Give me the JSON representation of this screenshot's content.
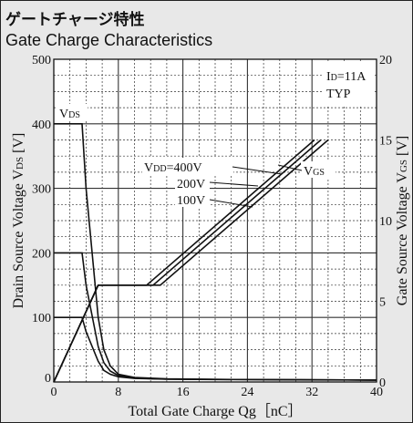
{
  "title_jp": "ゲートチャージ特性",
  "title_en": "Gate Charge Characteristics",
  "chart_data": {
    "type": "line",
    "xlabel": "Total Gate Charge  Qg［nC］",
    "ylabel_left": "Drain Source Voltage  V",
    "ylabel_left_sub": "DS",
    "ylabel_left_unit": " [V]",
    "ylabel_right": "Gate Source Voltage  V",
    "ylabel_right_sub": "GS",
    "ylabel_right_unit": " [V]",
    "xlim": [
      0,
      40
    ],
    "ylim_left": [
      0,
      500
    ],
    "ylim_right": [
      0,
      20
    ],
    "x_ticks": [
      "0",
      "8",
      "16",
      "24",
      "32",
      "40"
    ],
    "y_left_ticks": [
      "0",
      "100",
      "200",
      "300",
      "400",
      "500"
    ],
    "y_right_ticks": [
      "0",
      "5",
      "10",
      "15",
      "20"
    ],
    "grid": true,
    "conditions": [
      "I",
      "D",
      "=11A",
      "TYP"
    ],
    "annotations": {
      "vds": [
        "V",
        "DS"
      ],
      "vgs": [
        "V",
        "GS"
      ],
      "vdd400": [
        "V",
        "DD",
        "=400V"
      ],
      "vdd200": "200V",
      "vdd100": "100V"
    },
    "vds_series": [
      {
        "name": "400V",
        "x": [
          0,
          3.5,
          4,
          5.5,
          6.2,
          7,
          8,
          10,
          14,
          20,
          30,
          40
        ],
        "y": [
          400,
          400,
          300,
          100,
          50,
          25,
          12,
          7,
          5,
          4,
          3.5,
          3
        ]
      },
      {
        "name": "200V",
        "x": [
          0,
          3.5,
          4,
          5.5,
          6.2,
          7,
          8,
          10,
          14,
          20,
          30,
          40
        ],
        "y": [
          200,
          200,
          150,
          55,
          30,
          17,
          10,
          6,
          4.5,
          4,
          3.5,
          3
        ]
      },
      {
        "name": "100V",
        "x": [
          0,
          3.5,
          4,
          5.5,
          6.2,
          7,
          8,
          10,
          14,
          20,
          30,
          40
        ],
        "y": [
          100,
          100,
          78,
          32,
          18,
          12,
          8,
          5.5,
          4.2,
          3.8,
          3.3,
          3
        ]
      }
    ],
    "vgs_series": [
      {
        "name": "100V",
        "x": [
          0,
          5.5,
          11.5,
          32.3
        ],
        "y": [
          0,
          6.0,
          6.0,
          15.0
        ]
      },
      {
        "name": "200V",
        "x": [
          0,
          5.5,
          12.3,
          33.1
        ],
        "y": [
          0,
          6.0,
          6.0,
          15.0
        ]
      },
      {
        "name": "400V",
        "x": [
          0,
          5.5,
          13.2,
          34.0
        ],
        "y": [
          0,
          6.0,
          6.0,
          15.0
        ]
      }
    ]
  }
}
